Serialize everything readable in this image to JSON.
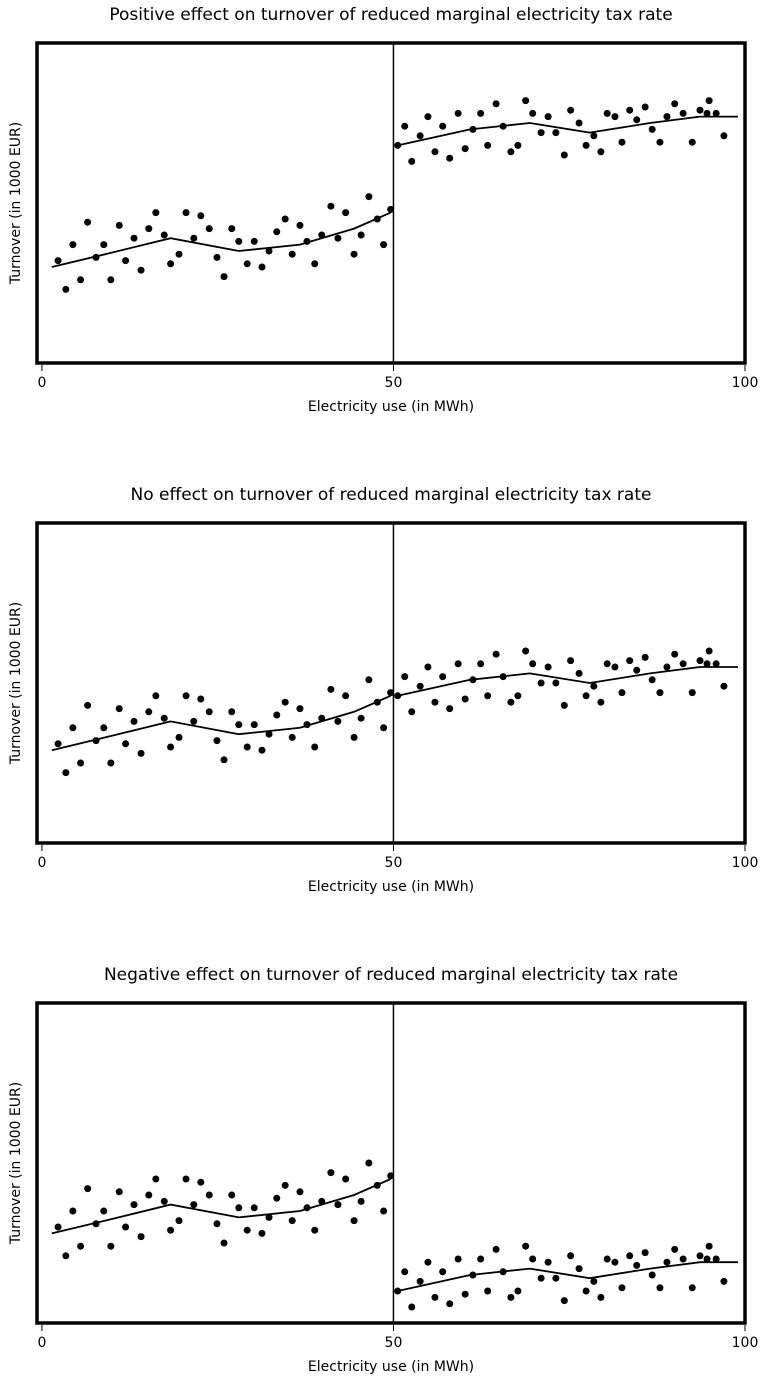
{
  "chart_data": [
    {
      "type": "scatter",
      "title": "Positive effect on turnover of reduced marginal electricity tax rate",
      "x_label": "Electricity use (in MWh)",
      "y_label": "Turnover (in 1000 EUR)",
      "color": "#000000",
      "xlim": [
        -0.7,
        100
      ],
      "xticks": [
        0,
        50,
        100
      ],
      "ylim": [
        0,
        100
      ],
      "cutoff": 50,
      "x": [
        2.3,
        3.4,
        4.4,
        5.5,
        6.5,
        7.7,
        8.8,
        9.8,
        11.0,
        11.9,
        13.1,
        14.1,
        15.2,
        16.2,
        17.4,
        18.3,
        19.5,
        20.5,
        21.6,
        22.6,
        23.8,
        24.9,
        25.9,
        27.0,
        28.0,
        29.2,
        30.2,
        31.3,
        32.3,
        33.4,
        34.6,
        35.6,
        36.7,
        37.7,
        38.8,
        39.8,
        41.1,
        42.1,
        43.2,
        44.4,
        45.4,
        46.5,
        47.7,
        48.6,
        49.6,
        50.6,
        51.6,
        52.6,
        53.8,
        54.9,
        55.9,
        57.0,
        58.0,
        59.2,
        60.2,
        61.3,
        62.4,
        63.4,
        64.6,
        65.6,
        66.7,
        67.7,
        68.8,
        69.8,
        71.0,
        72.0,
        73.1,
        74.3,
        75.2,
        76.4,
        77.4,
        78.5,
        79.5,
        80.4,
        81.5,
        82.5,
        83.6,
        84.6,
        85.8,
        86.8,
        87.9,
        88.9,
        90.0,
        91.2,
        92.5,
        93.6,
        94.6,
        94.9,
        95.9,
        97.0
      ],
      "values": [
        32,
        23,
        37,
        26,
        44,
        33,
        37,
        26,
        43,
        32,
        39,
        29,
        42,
        47,
        40,
        31,
        34,
        47,
        39,
        46,
        42,
        33,
        27,
        42,
        38,
        31,
        38,
        30,
        35,
        41,
        45,
        34,
        43,
        38,
        31,
        40,
        49,
        39,
        47,
        34,
        40,
        52,
        45,
        37,
        48,
        68,
        74,
        63,
        71,
        77,
        66,
        74,
        64,
        78,
        67,
        73,
        78,
        68,
        81,
        74,
        66,
        68,
        82,
        78,
        72,
        77,
        72,
        65,
        79,
        75,
        68,
        71,
        66,
        78,
        77,
        69,
        79,
        76,
        80,
        73,
        69,
        77,
        81,
        78,
        69,
        79,
        78,
        82,
        78,
        71
      ],
      "fit_x": [
        1.4,
        9,
        18.3,
        28,
        36.7,
        44.4,
        49.6,
        50,
        50.6,
        60.9,
        69.4,
        77.9,
        86.5,
        93.6,
        99
      ],
      "fit_values": [
        30,
        34,
        39,
        35,
        37,
        42,
        47,
        null,
        68,
        73,
        75,
        72,
        75,
        77,
        77
      ]
    },
    {
      "type": "scatter",
      "title": "No effect on turnover of reduced marginal electricity tax rate",
      "x_label": "Electricity use (in MWh)",
      "y_label": "Turnover (in 1000 EUR)",
      "color": "#000000",
      "xlim": [
        -0.7,
        100
      ],
      "xticks": [
        0,
        50,
        100
      ],
      "ylim": [
        0,
        100
      ],
      "cutoff": 50,
      "x": [
        2.3,
        3.4,
        4.4,
        5.5,
        6.5,
        7.7,
        8.8,
        9.8,
        11.0,
        11.9,
        13.1,
        14.1,
        15.2,
        16.2,
        17.4,
        18.3,
        19.5,
        20.5,
        21.6,
        22.6,
        23.8,
        24.9,
        25.9,
        27.0,
        28.0,
        29.2,
        30.2,
        31.3,
        32.3,
        33.4,
        34.6,
        35.6,
        36.7,
        37.7,
        38.8,
        39.8,
        41.1,
        42.1,
        43.2,
        44.4,
        45.4,
        46.5,
        47.7,
        48.6,
        49.6,
        50.6,
        51.6,
        52.6,
        53.8,
        54.9,
        55.9,
        57.0,
        58.0,
        59.2,
        60.2,
        61.3,
        62.4,
        63.4,
        64.6,
        65.6,
        66.7,
        67.7,
        68.8,
        69.8,
        71.0,
        72.0,
        73.1,
        74.3,
        75.2,
        76.4,
        77.4,
        78.5,
        79.5,
        80.4,
        81.5,
        82.5,
        83.6,
        84.6,
        85.8,
        86.8,
        87.9,
        88.9,
        90.0,
        91.2,
        92.5,
        93.6,
        94.6,
        94.9,
        95.9,
        97.0
      ],
      "values": [
        31,
        22,
        36,
        25,
        43,
        32,
        36,
        25,
        42,
        31,
        38,
        28,
        41,
        46,
        39,
        30,
        33,
        46,
        38,
        45,
        41,
        32,
        26,
        41,
        37,
        30,
        37,
        29,
        34,
        40,
        44,
        33,
        42,
        37,
        30,
        39,
        48,
        38,
        46,
        33,
        39,
        51,
        44,
        36,
        47,
        46,
        52,
        41,
        49,
        55,
        44,
        52,
        42,
        56,
        45,
        51,
        56,
        46,
        59,
        52,
        44,
        46,
        60,
        56,
        50,
        55,
        50,
        43,
        57,
        53,
        46,
        49,
        44,
        56,
        55,
        47,
        57,
        54,
        58,
        51,
        47,
        55,
        59,
        56,
        47,
        57,
        56,
        60,
        56,
        49
      ],
      "fit_x": [
        1.4,
        9,
        18.3,
        28,
        36.7,
        44.4,
        49.6,
        50,
        50.6,
        60.9,
        69.4,
        77.9,
        86.5,
        93.6,
        99
      ],
      "fit_values": [
        29,
        33,
        38,
        34,
        36,
        41,
        46,
        null,
        46,
        51,
        53,
        50,
        53,
        55,
        55
      ]
    },
    {
      "type": "scatter",
      "title": "Negative effect on turnover of reduced marginal electricity tax rate",
      "x_label": "Electricity use (in MWh)",
      "y_label": "Turnover (in 1000 EUR)",
      "color": "#000000",
      "xlim": [
        -0.7,
        100
      ],
      "xticks": [
        0,
        50,
        100
      ],
      "ylim": [
        0,
        100
      ],
      "cutoff": 50,
      "x": [
        2.3,
        3.4,
        4.4,
        5.5,
        6.5,
        7.7,
        8.8,
        9.8,
        11.0,
        11.9,
        13.1,
        14.1,
        15.2,
        16.2,
        17.4,
        18.3,
        19.5,
        20.5,
        21.6,
        22.6,
        23.8,
        24.9,
        25.9,
        27.0,
        28.0,
        29.2,
        30.2,
        31.3,
        32.3,
        33.4,
        34.6,
        35.6,
        36.7,
        37.7,
        38.8,
        39.8,
        41.1,
        42.1,
        43.2,
        44.4,
        45.4,
        46.5,
        47.7,
        48.6,
        49.6,
        50.6,
        51.6,
        52.6,
        53.8,
        54.9,
        55.9,
        57.0,
        58.0,
        59.2,
        60.2,
        61.3,
        62.4,
        63.4,
        64.6,
        65.6,
        66.7,
        67.7,
        68.8,
        69.8,
        71.0,
        72.0,
        73.1,
        74.3,
        75.2,
        76.4,
        77.4,
        78.5,
        79.5,
        80.4,
        81.5,
        82.5,
        83.6,
        84.6,
        85.8,
        86.8,
        87.9,
        88.9,
        90.0,
        91.2,
        92.5,
        93.6,
        94.6,
        94.9,
        95.9,
        97.0
      ],
      "values": [
        30,
        21,
        35,
        24,
        42,
        31,
        35,
        24,
        41,
        30,
        37,
        27,
        40,
        45,
        38,
        29,
        32,
        45,
        37,
        44,
        40,
        31,
        25,
        40,
        36,
        29,
        36,
        28,
        33,
        39,
        43,
        32,
        41,
        36,
        29,
        38,
        47,
        37,
        45,
        32,
        38,
        50,
        43,
        35,
        46,
        10,
        16,
        5,
        13,
        19,
        8,
        16,
        6,
        20,
        9,
        15,
        20,
        10,
        23,
        16,
        8,
        10,
        24,
        20,
        14,
        19,
        14,
        7,
        21,
        17,
        10,
        13,
        8,
        20,
        19,
        11,
        21,
        18,
        22,
        15,
        11,
        19,
        23,
        20,
        11,
        21,
        20,
        24,
        20,
        13
      ],
      "fit_x": [
        1.4,
        9,
        18.3,
        28,
        36.7,
        44.4,
        49.6,
        50,
        50.6,
        60.9,
        69.4,
        77.9,
        86.5,
        93.6,
        99
      ],
      "fit_values": [
        28,
        32,
        37,
        33,
        35,
        40,
        45,
        null,
        10,
        15,
        17,
        14,
        17,
        19,
        19
      ]
    }
  ]
}
